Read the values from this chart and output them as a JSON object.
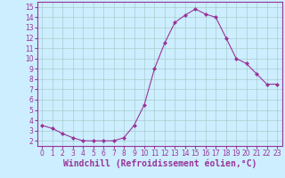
{
  "x": [
    0,
    1,
    2,
    3,
    4,
    5,
    6,
    7,
    8,
    9,
    10,
    11,
    12,
    13,
    14,
    15,
    16,
    17,
    18,
    19,
    20,
    21,
    22,
    23
  ],
  "y": [
    3.5,
    3.2,
    2.7,
    2.3,
    2.0,
    2.0,
    2.0,
    2.0,
    2.3,
    3.5,
    5.5,
    9.0,
    11.5,
    13.5,
    14.2,
    14.8,
    14.3,
    14.0,
    12.0,
    10.0,
    9.5,
    8.5,
    7.5,
    7.5
  ],
  "line_color": "#993399",
  "marker": "D",
  "marker_size": 2,
  "bg_color": "#cceeff",
  "grid_color": "#aacccc",
  "xlabel": "Windchill (Refroidissement éolien,°C)",
  "ylabel": "",
  "xlim": [
    -0.5,
    23.5
  ],
  "ylim": [
    1.5,
    15.5
  ],
  "yticks": [
    2,
    3,
    4,
    5,
    6,
    7,
    8,
    9,
    10,
    11,
    12,
    13,
    14,
    15
  ],
  "xticks": [
    0,
    1,
    2,
    3,
    4,
    5,
    6,
    7,
    8,
    9,
    10,
    11,
    12,
    13,
    14,
    15,
    16,
    17,
    18,
    19,
    20,
    21,
    22,
    23
  ],
  "tick_color": "#993399",
  "label_color": "#993399",
  "spine_color": "#993399",
  "tick_fontsize": 5.5,
  "xlabel_fontsize": 7.0
}
